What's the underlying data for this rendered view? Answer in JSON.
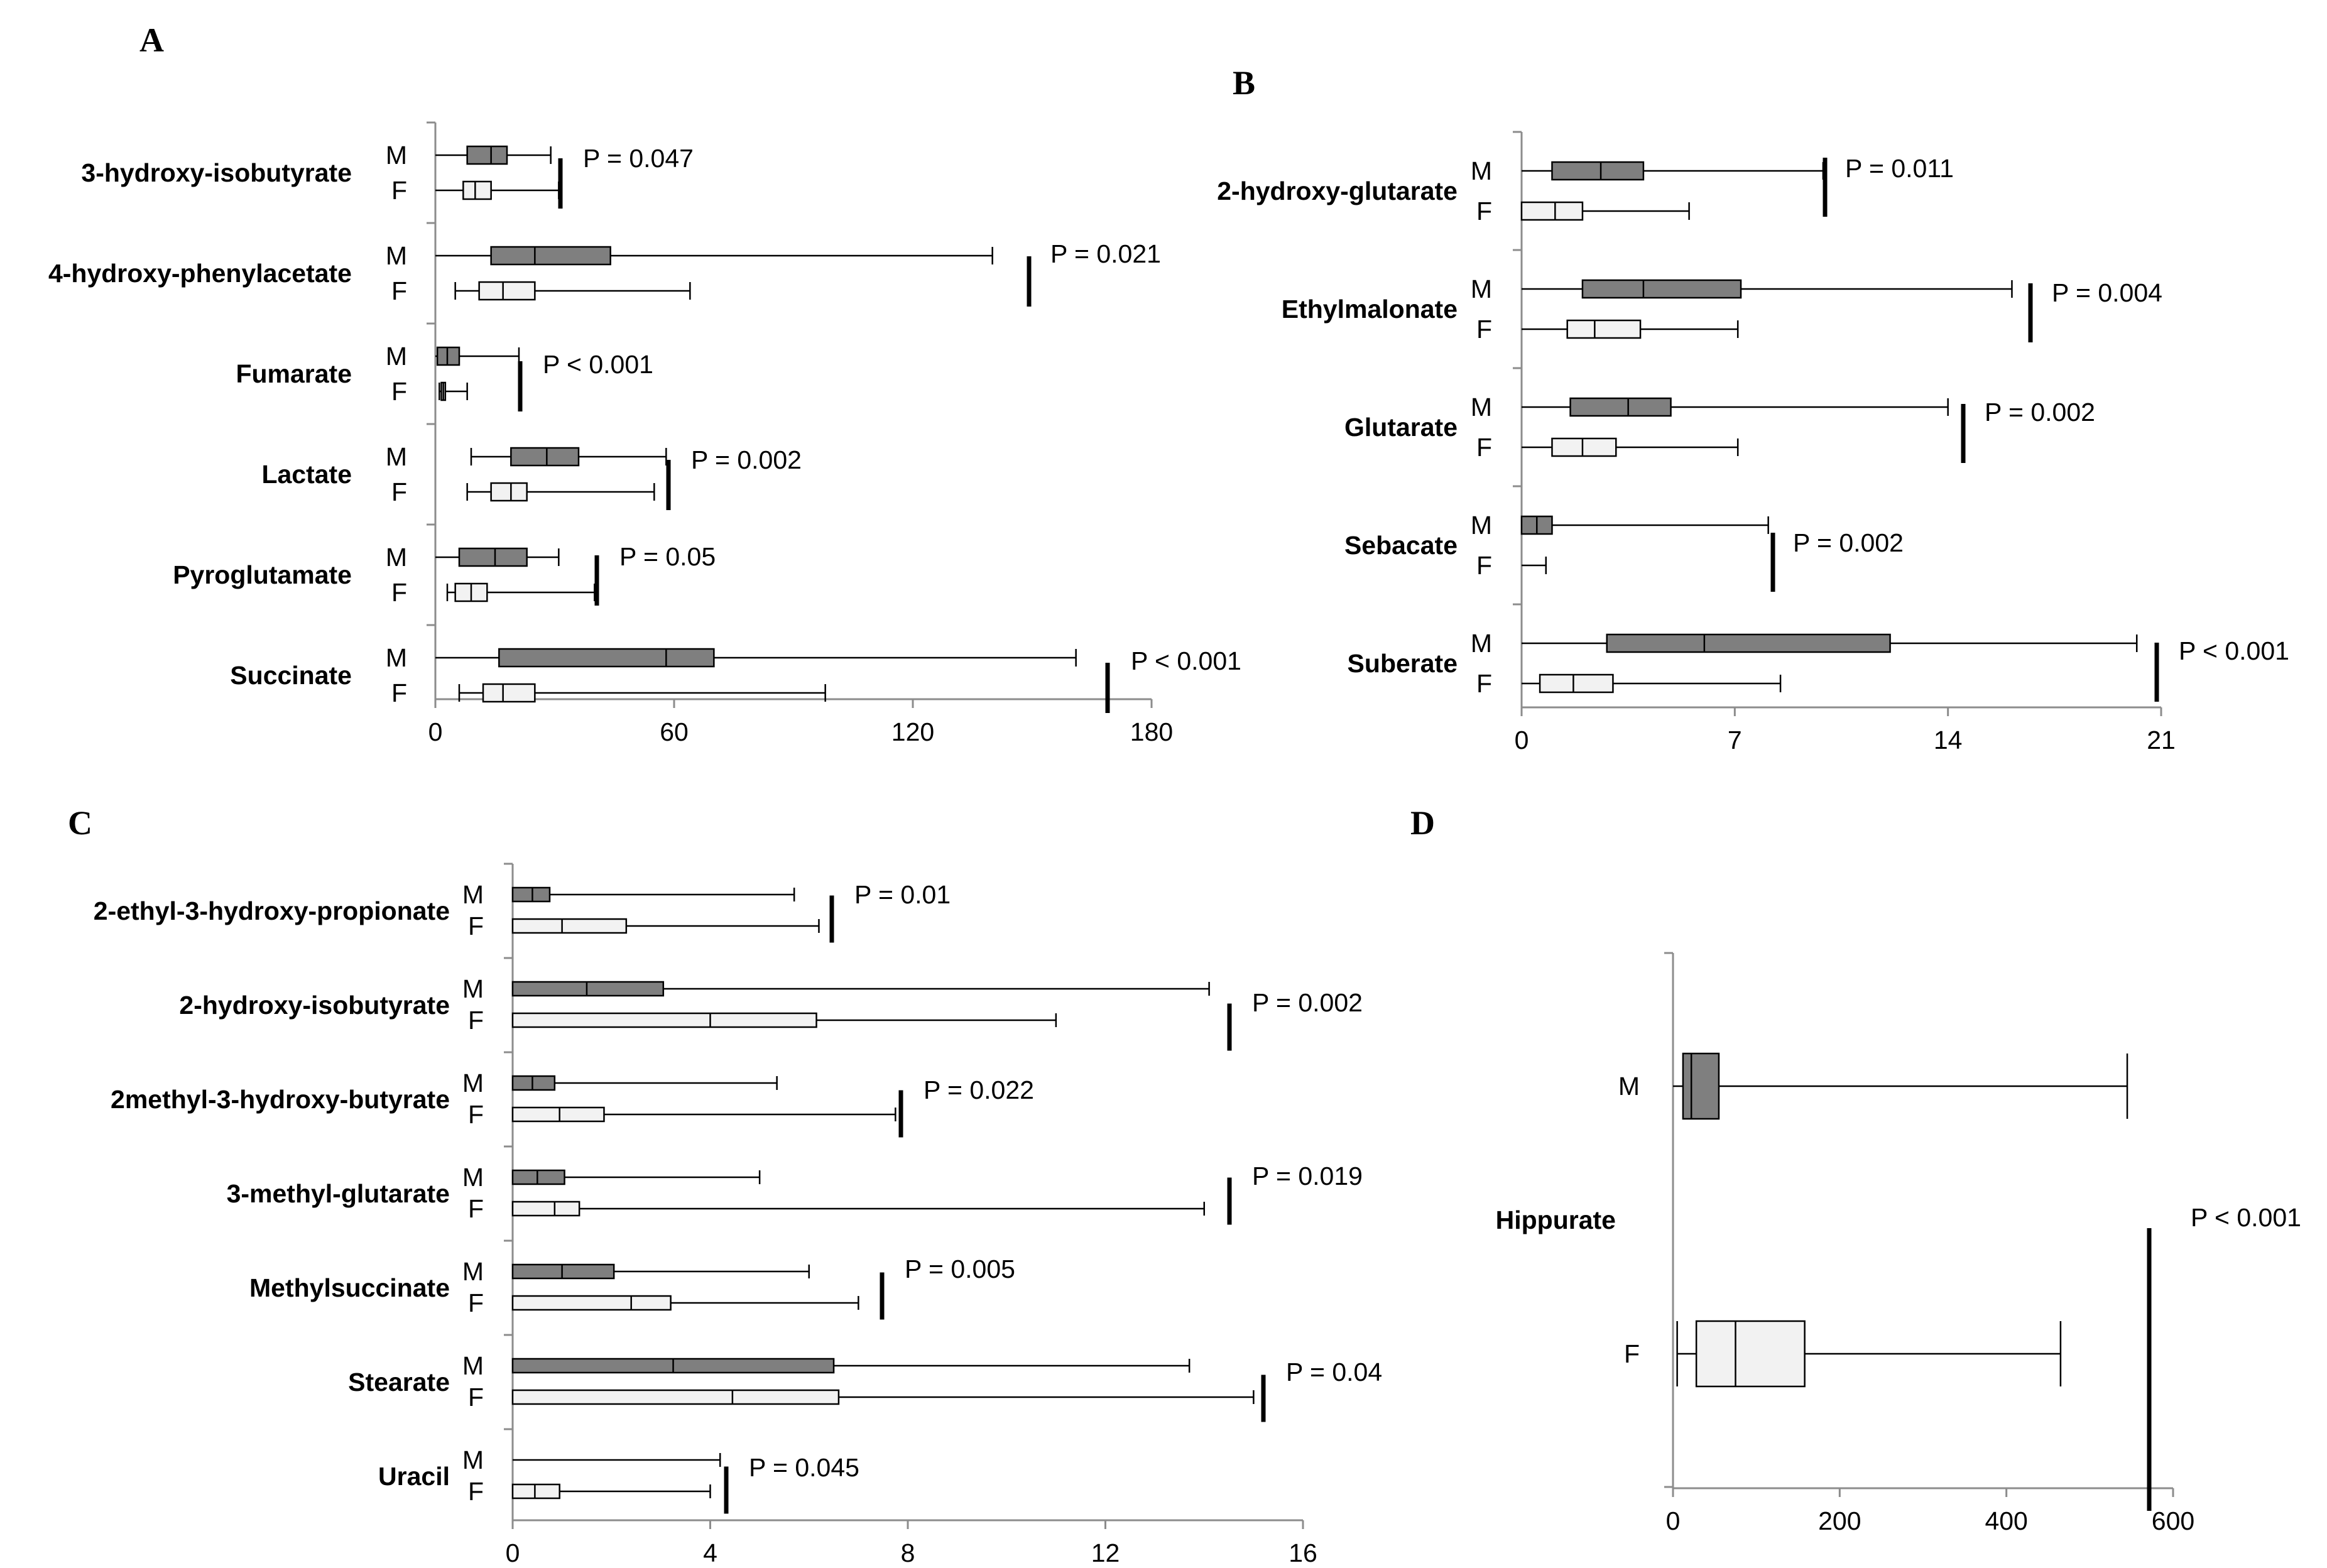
{
  "chart_data": [
    {
      "panel": "A",
      "type": "boxplot",
      "orientation": "horizontal",
      "xlim": [
        0,
        180
      ],
      "xticks": [
        "0",
        "60",
        "120",
        "180"
      ],
      "rows": [
        {
          "label": "3-hydroxy-isobutyrate",
          "p": "P = 0.047",
          "M": {
            "min": 0,
            "q1": 8,
            "med": 14,
            "q3": 18,
            "max": 29
          },
          "F": {
            "min": 0,
            "q1": 7,
            "med": 10,
            "q3": 14,
            "max": 31
          }
        },
        {
          "label": "4-hydroxy-phenylacetate",
          "p": "P = 0.021",
          "M": {
            "min": 0,
            "q1": 14,
            "med": 25,
            "q3": 44,
            "max": 140
          },
          "F": {
            "min": 5,
            "q1": 11,
            "med": 17,
            "q3": 25,
            "max": 64
          }
        },
        {
          "label": "Fumarate",
          "p": "P < 0.001",
          "M": {
            "min": 0,
            "q1": 0.5,
            "med": 3,
            "q3": 6,
            "max": 21
          },
          "F": {
            "min": 1,
            "q1": 1.5,
            "med": 2,
            "q3": 2.5,
            "max": 8
          }
        },
        {
          "label": "Lactate",
          "p": "P = 0.002",
          "M": {
            "min": 9,
            "q1": 19,
            "med": 28,
            "q3": 36,
            "max": 58
          },
          "F": {
            "min": 8,
            "q1": 14,
            "med": 19,
            "q3": 23,
            "max": 55
          }
        },
        {
          "label": "Pyroglutamate",
          "p": "P = 0.05",
          "M": {
            "min": 0,
            "q1": 6,
            "med": 15,
            "q3": 23,
            "max": 31
          },
          "F": {
            "min": 3,
            "q1": 5,
            "med": 9,
            "q3": 13,
            "max": 40
          }
        },
        {
          "label": "Succinate",
          "p": "P < 0.001",
          "M": {
            "min": 0,
            "q1": 16,
            "med": 58,
            "q3": 70,
            "max": 161
          },
          "F": {
            "min": 6,
            "q1": 12,
            "med": 17,
            "q3": 25,
            "max": 98
          }
        }
      ]
    },
    {
      "panel": "B",
      "type": "boxplot",
      "orientation": "horizontal",
      "xlim": [
        0,
        21
      ],
      "xticks": [
        "0",
        "7",
        "14",
        "21"
      ],
      "rows": [
        {
          "label": "2-hydroxy-glutarate",
          "p": "P = 0.011",
          "M": {
            "min": 0,
            "q1": 1,
            "med": 2.6,
            "q3": 4,
            "max": 9.9
          },
          "F": {
            "min": 0,
            "q1": 0,
            "med": 1.1,
            "q3": 2,
            "max": 5.5
          }
        },
        {
          "label": "Ethylmalonate",
          "p": "P = 0.004",
          "M": {
            "min": 0,
            "q1": 2,
            "med": 4,
            "q3": 7.2,
            "max": 16.1
          },
          "F": {
            "min": 0,
            "q1": 1.5,
            "med": 2.4,
            "q3": 3.9,
            "max": 7.1
          }
        },
        {
          "label": "Glutarate",
          "p": "P = 0.002",
          "M": {
            "min": 0,
            "q1": 1.6,
            "med": 3.5,
            "q3": 4.9,
            "max": 14
          },
          "F": {
            "min": 0,
            "q1": 1,
            "med": 2,
            "q3": 3.1,
            "max": 7.1
          }
        },
        {
          "label": "Sebacate",
          "p": "P = 0.002",
          "M": {
            "min": 0,
            "q1": 0,
            "med": 0.5,
            "q3": 1,
            "max": 8.1
          },
          "F": {
            "min": 0,
            "q1": 0,
            "med": 0,
            "q3": 0,
            "max": 0.8
          }
        },
        {
          "label": "Suberate",
          "p": "P < 0.001",
          "M": {
            "min": 0,
            "q1": 2.8,
            "med": 6,
            "q3": 12.1,
            "max": 20.2
          },
          "F": {
            "min": 0,
            "q1": 0.6,
            "med": 1.7,
            "q3": 3,
            "max": 8.5
          }
        }
      ]
    },
    {
      "panel": "C",
      "type": "boxplot",
      "orientation": "horizontal",
      "xlim": [
        0,
        16
      ],
      "xticks": [
        "0",
        "4",
        "8",
        "12",
        "16"
      ],
      "rows": [
        {
          "label": "2-ethyl-3-hydroxy-propionate",
          "p": "P = 0.01",
          "M": {
            "min": 0,
            "q1": 0,
            "med": 0.4,
            "q3": 0.75,
            "max": 5.7
          },
          "F": {
            "min": 0,
            "q1": 0,
            "med": 1,
            "q3": 2.3,
            "max": 6.2
          }
        },
        {
          "label": "2-hydroxy-isobutyrate",
          "p": "P = 0.002",
          "M": {
            "min": 0,
            "q1": 0,
            "med": 1.5,
            "q3": 3.05,
            "max": 14.1
          },
          "F": {
            "min": 0,
            "q1": 0,
            "med": 4,
            "q3": 6.15,
            "max": 11
          }
        },
        {
          "label": "2methyl-3-hydroxy-butyrate",
          "p": "P = 0.022",
          "M": {
            "min": 0,
            "q1": 0,
            "med": 0.4,
            "q3": 0.85,
            "max": 5.35
          },
          "F": {
            "min": 0,
            "q1": 0,
            "med": 0.95,
            "q3": 1.85,
            "max": 7.75
          }
        },
        {
          "label": "3-methyl-glutarate",
          "p": "P = 0.019",
          "M": {
            "min": 0,
            "q1": 0,
            "med": 0.5,
            "q3": 1.05,
            "max": 5
          },
          "F": {
            "min": 0,
            "q1": 0,
            "med": 0.85,
            "q3": 1.35,
            "max": 14
          }
        },
        {
          "label": "Methylsuccinate",
          "p": "P = 0.005",
          "M": {
            "min": 0,
            "q1": 0,
            "med": 1,
            "q3": 2.05,
            "max": 6
          },
          "F": {
            "min": 0,
            "q1": 0,
            "med": 2.4,
            "q3": 3.2,
            "max": 7
          }
        },
        {
          "label": "Stearate",
          "p": "P = 0.04",
          "M": {
            "min": 0,
            "q1": 0,
            "med": 3.25,
            "q3": 6.5,
            "max": 13.7
          },
          "F": {
            "min": 0,
            "q1": 0,
            "med": 4.45,
            "q3": 6.6,
            "max": 15
          }
        },
        {
          "label": "Uracil",
          "p": "P = 0.045",
          "M": {
            "min": 0,
            "q1": 0,
            "med": 0,
            "q3": 0,
            "max": 4.2
          },
          "F": {
            "min": 0,
            "q1": 0,
            "med": 0.45,
            "q3": 0.95,
            "max": 4
          }
        }
      ]
    },
    {
      "panel": "D",
      "type": "boxplot",
      "orientation": "horizontal",
      "xlim": [
        0,
        600
      ],
      "xticks": [
        "0",
        "200",
        "400",
        "600"
      ],
      "rows": [
        {
          "label": "Hippurate",
          "p": "P < 0.001",
          "M": {
            "min": 0,
            "q1": 12,
            "med": 22,
            "q3": 55,
            "max": 545
          },
          "F": {
            "min": 5,
            "q1": 28,
            "med": 75,
            "q3": 158,
            "max": 465
          }
        }
      ]
    }
  ],
  "group_labels": {
    "male": "M",
    "female": "F"
  },
  "colors": {
    "male_box": "#7f7f7f",
    "female_box": "#f2f2f2",
    "axis": "#8c8c8c",
    "line": "#000000"
  }
}
